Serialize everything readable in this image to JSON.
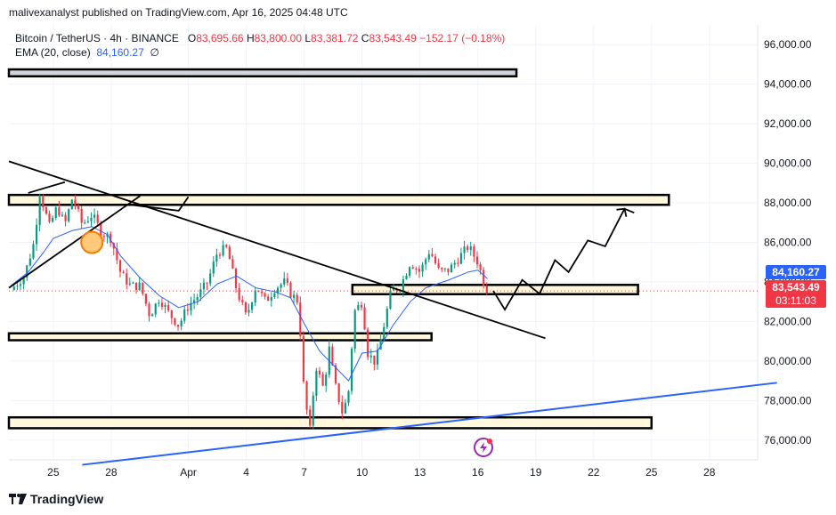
{
  "header": {
    "publisher": "malivexanalyst published on TradingView.com, Apr 16, 2025 04:48 UTC"
  },
  "legend": {
    "symbol": "Bitcoin / TetherUS · 4h · BINANCE",
    "o_label": "O",
    "o_value": "83,695.66",
    "h_label": "H",
    "h_value": "83,800.00",
    "l_label": "L",
    "l_value": "83,381.72",
    "c_label": "C",
    "c_value": "83,543.49",
    "change": "−152.17 (−0.18%)",
    "ema_label": "EMA (20, close)",
    "ema_value": "84,160.27",
    "ema_extra": "∅"
  },
  "price_tags": {
    "ema": "84,160.27",
    "last": "83,543.49",
    "countdown": "03:11:03"
  },
  "footer": {
    "brand": "TradingView"
  },
  "colors": {
    "up": "#089981",
    "down": "#f23645",
    "ema": "#2962ff",
    "zone_fill": "#fff8dc",
    "last_price": "#f23645",
    "ema_tag": "#2962ff"
  },
  "chart_data": {
    "type": "candlestick",
    "title": "Bitcoin / TetherUS · 4h · BINANCE",
    "ylim": [
      75000,
      97000
    ],
    "yticks": [
      76000,
      78000,
      80000,
      82000,
      84000,
      86000,
      88000,
      90000,
      92000,
      94000,
      96000
    ],
    "ytick_labels": [
      "76,000.00",
      "78,000.00",
      "80,000.00",
      "82,000.00",
      "84,000.00",
      "86,000.00",
      "88,000.00",
      "90,000.00",
      "92,000.00",
      "94,000.00",
      "96,000.00"
    ],
    "x_tick_labels": [
      "25",
      "28",
      "Apr",
      "4",
      "7",
      "10",
      "13",
      "16",
      "19",
      "22",
      "25",
      "28"
    ],
    "x_tick_days": [
      1,
      4,
      8,
      11,
      14,
      17,
      20,
      23,
      26,
      29,
      32,
      35
    ],
    "xlim_days": [
      -1.3,
      37.5
    ],
    "grid": true,
    "series": [
      {
        "name": "BTC/USDT 4h",
        "close_path_day_price": [
          [
            -1.2,
            83600
          ],
          [
            -0.5,
            84300
          ],
          [
            0.0,
            86000
          ],
          [
            0.3,
            88500
          ],
          [
            0.8,
            86800
          ],
          [
            1.2,
            87800
          ],
          [
            1.6,
            86900
          ],
          [
            2.0,
            88300
          ],
          [
            2.5,
            86900
          ],
          [
            3.0,
            87400
          ],
          [
            3.5,
            86500
          ],
          [
            4.0,
            86200
          ],
          [
            4.5,
            84400
          ],
          [
            5.0,
            83800
          ],
          [
            5.5,
            83800
          ],
          [
            6.0,
            82300
          ],
          [
            6.5,
            83200
          ],
          [
            7.0,
            82400
          ],
          [
            7.5,
            81800
          ],
          [
            8.0,
            82800
          ],
          [
            8.5,
            83300
          ],
          [
            9.0,
            84000
          ],
          [
            9.5,
            85500
          ],
          [
            10.0,
            85700
          ],
          [
            10.5,
            83600
          ],
          [
            11.0,
            82200
          ],
          [
            11.5,
            83800
          ],
          [
            12.0,
            83000
          ],
          [
            12.5,
            83700
          ],
          [
            13.0,
            84000
          ],
          [
            13.3,
            83400
          ],
          [
            13.7,
            83000
          ],
          [
            14.0,
            78300
          ],
          [
            14.3,
            76500
          ],
          [
            14.6,
            79800
          ],
          [
            15.0,
            78600
          ],
          [
            15.3,
            80600
          ],
          [
            15.6,
            78800
          ],
          [
            16.0,
            77300
          ],
          [
            16.3,
            78500
          ],
          [
            16.6,
            82500
          ],
          [
            17.0,
            83000
          ],
          [
            17.3,
            80400
          ],
          [
            17.7,
            79900
          ],
          [
            18.0,
            81200
          ],
          [
            18.5,
            83500
          ],
          [
            19.0,
            83800
          ],
          [
            19.5,
            85000
          ],
          [
            20.0,
            84500
          ],
          [
            20.5,
            85600
          ],
          [
            21.0,
            84500
          ],
          [
            21.5,
            84600
          ],
          [
            22.0,
            85200
          ],
          [
            22.5,
            85800
          ],
          [
            23.0,
            85000
          ],
          [
            23.3,
            84000
          ],
          [
            23.5,
            83543
          ]
        ],
        "ema": [
          [
            -1.2,
            83800
          ],
          [
            -0.3,
            84500
          ],
          [
            0.5,
            85500
          ],
          [
            1.0,
            86200
          ],
          [
            2.0,
            86600
          ],
          [
            3.0,
            86800
          ],
          [
            3.8,
            86400
          ],
          [
            4.5,
            85300
          ],
          [
            5.5,
            84200
          ],
          [
            6.5,
            83300
          ],
          [
            7.5,
            82700
          ],
          [
            8.5,
            83000
          ],
          [
            9.5,
            83900
          ],
          [
            10.5,
            84300
          ],
          [
            11.5,
            83700
          ],
          [
            12.5,
            83500
          ],
          [
            13.3,
            83200
          ],
          [
            14.0,
            81900
          ],
          [
            14.8,
            80500
          ],
          [
            15.6,
            79700
          ],
          [
            16.3,
            79000
          ],
          [
            17.0,
            80400
          ],
          [
            17.8,
            80500
          ],
          [
            18.6,
            81800
          ],
          [
            19.5,
            83000
          ],
          [
            20.3,
            83700
          ],
          [
            21.5,
            84100
          ],
          [
            22.5,
            84500
          ],
          [
            23.0,
            84600
          ],
          [
            23.5,
            84160
          ]
        ]
      }
    ],
    "annotations": {
      "zones": [
        {
          "y1": 94400,
          "y2": 94750,
          "x1": -1.3,
          "x2": 25.0
        },
        {
          "y1": 87900,
          "y2": 88400,
          "x1": -1.3,
          "x2": 32.9
        },
        {
          "y1": 83380,
          "y2": 83850,
          "x1": 16.5,
          "x2": 31.3
        },
        {
          "y1": 81050,
          "y2": 81400,
          "x1": -1.3,
          "x2": 20.6
        },
        {
          "y1": 76600,
          "y2": 77150,
          "x1": -1.3,
          "x2": 32.0
        }
      ],
      "trendlines_black": [
        [
          [
            -1.3,
            90100
          ],
          [
            26.5,
            81150
          ]
        ],
        [
          [
            -1.3,
            83700
          ],
          [
            5.5,
            88350
          ]
        ],
        [
          [
            -0.3,
            88500
          ],
          [
            1.6,
            89050
          ]
        ],
        [
          [
            5.0,
            87900
          ],
          [
            7.5,
            87600
          ],
          [
            8.0,
            88300
          ]
        ]
      ],
      "trendline_blue": [
        [
          2.5,
          74750
        ],
        [
          38.5,
          78900
        ]
      ],
      "projection": [
        [
          23.8,
          83550
        ],
        [
          24.4,
          82600
        ],
        [
          25.3,
          84100
        ],
        [
          26.2,
          83400
        ],
        [
          27.0,
          85100
        ],
        [
          27.7,
          84500
        ],
        [
          28.7,
          86100
        ],
        [
          29.6,
          85800
        ],
        [
          30.6,
          87700
        ],
        [
          31.1,
          87500
        ]
      ],
      "marker": {
        "x": 3.0,
        "y": 86000
      }
    }
  }
}
